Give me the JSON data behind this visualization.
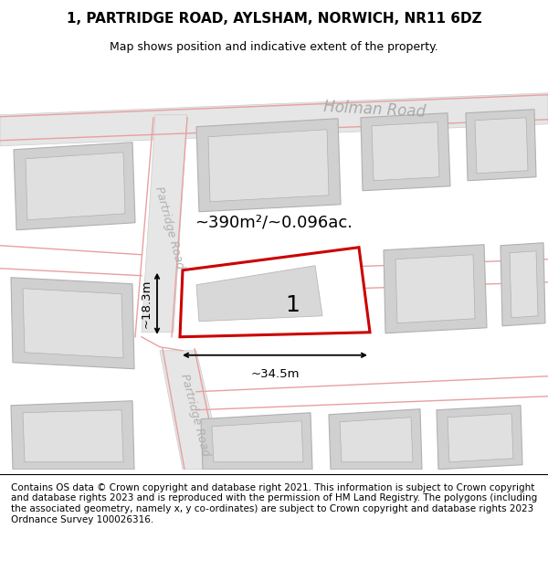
{
  "title": "1, PARTRIDGE ROAD, AYLSHAM, NORWICH, NR11 6DZ",
  "subtitle": "Map shows position and indicative extent of the property.",
  "footer": "Contains OS data © Crown copyright and database right 2021. This information is subject to Crown copyright and database rights 2023 and is reproduced with the permission of HM Land Registry. The polygons (including the associated geometry, namely x, y co-ordinates) are subject to Crown copyright and database rights 2023 Ordnance Survey 100026316.",
  "bg_color": "#f0f0f0",
  "road_fill": "#e0e0e0",
  "pink_road": "#e8a0a0",
  "building_fill": "#d0d0d0",
  "building_stroke": "#b0b0b0",
  "highlight_plot_fill": "#ffffff",
  "highlight_plot_stroke": "#cc0000",
  "plot_label": "1",
  "area_label": "~390m²/~0.096ac.",
  "width_label": "~34.5m",
  "height_label": "~18.3m",
  "holman_road_label": "Holman Road",
  "partridge_road_label": "Partridge Road",
  "title_fontsize": 11,
  "subtitle_fontsize": 9,
  "footer_fontsize": 7.5
}
